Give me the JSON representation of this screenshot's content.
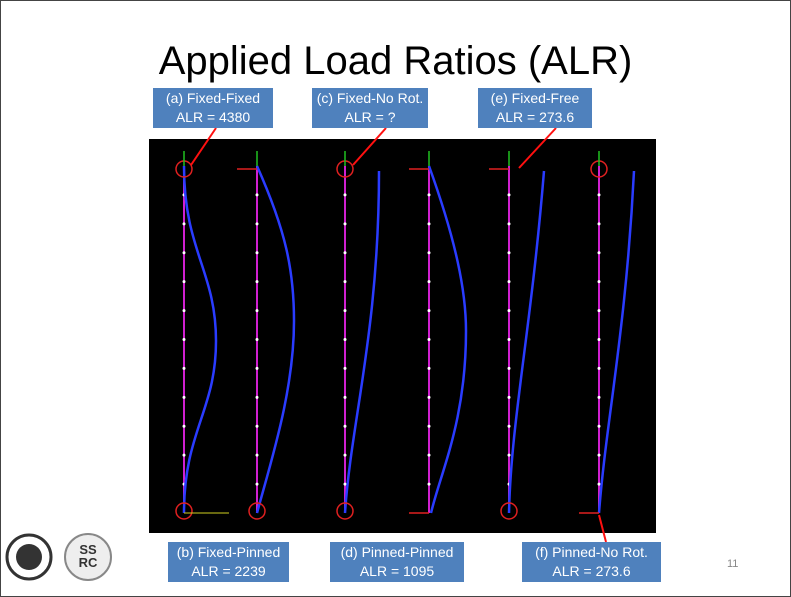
{
  "title": "Applied Load Ratios (ALR)",
  "labels": [
    {
      "name": "(a) Fixed-Fixed",
      "alr": "ALR = 4380"
    },
    {
      "name": "(b) Fixed-Pinned",
      "alr": "ALR = 2239"
    },
    {
      "name": "(c) Fixed-No Rot.",
      "alr": "ALR = ?"
    },
    {
      "name": "(d) Pinned-Pinned",
      "alr": "ALR = 1095"
    },
    {
      "name": "(e) Fixed-Free",
      "alr": "ALR = 273.6"
    },
    {
      "name": "(f) Pinned-No Rot.",
      "alr": "ALR = 273.6"
    }
  ],
  "logo_text": [
    "SS",
    "RC"
  ],
  "page_number": "11"
}
